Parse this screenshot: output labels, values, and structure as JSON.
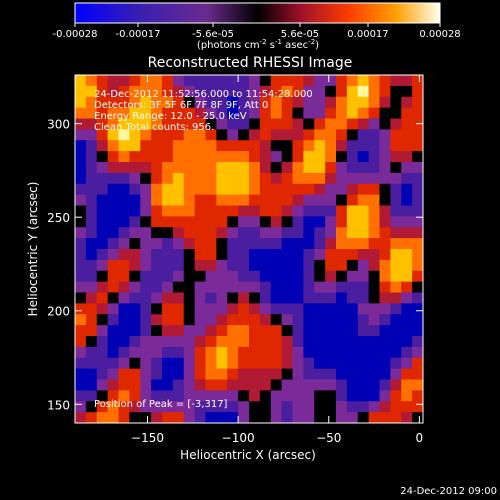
{
  "chart_data": {
    "type": "heatmap",
    "title": "Reconstructed RHESSI Image",
    "xlabel": "Heliocentric X (arcsec)",
    "ylabel": "Heliocentric Y (arcsec)",
    "xlim": [
      -190,
      2
    ],
    "ylim": [
      140,
      326
    ],
    "xticks": [
      -150,
      -100,
      -50,
      0
    ],
    "yticks": [
      150,
      200,
      250,
      300
    ],
    "colorbar": {
      "ticks": [
        "-0.00028",
        "-0.00017",
        "-5.6e-05",
        "5.6e-05",
        "0.00017",
        "0.00028"
      ],
      "range": [
        -0.00028,
        0.00028
      ],
      "units_main": "(photons cm",
      "units_sup1": "-2",
      "units_mid": " s",
      "units_sup2": "-1",
      "units_end": " asec",
      "units_sup3": "-2",
      "units_close": ")"
    },
    "info_lines": [
      "24-Dec-2012 11:52:56.000 to 11:54:28.000",
      "Detectors: 3F 5F 6F 7F 8F 9F, Att 0",
      "Energy Range: 12.0 - 25.0 keV",
      "Clean     Total counts: 956."
    ],
    "peak_label": "Position of Peak = [-3,317]",
    "grid_size": 32,
    "colors": {
      "cmap": [
        "#0000b4",
        "#4b1ea0",
        "#7a2a99",
        "#b01a34",
        "#e02800",
        "#ff7000",
        "#ffc000",
        "#fff8a0"
      ]
    }
  },
  "footer_timestamp": "24-Dec-2012 09:00"
}
